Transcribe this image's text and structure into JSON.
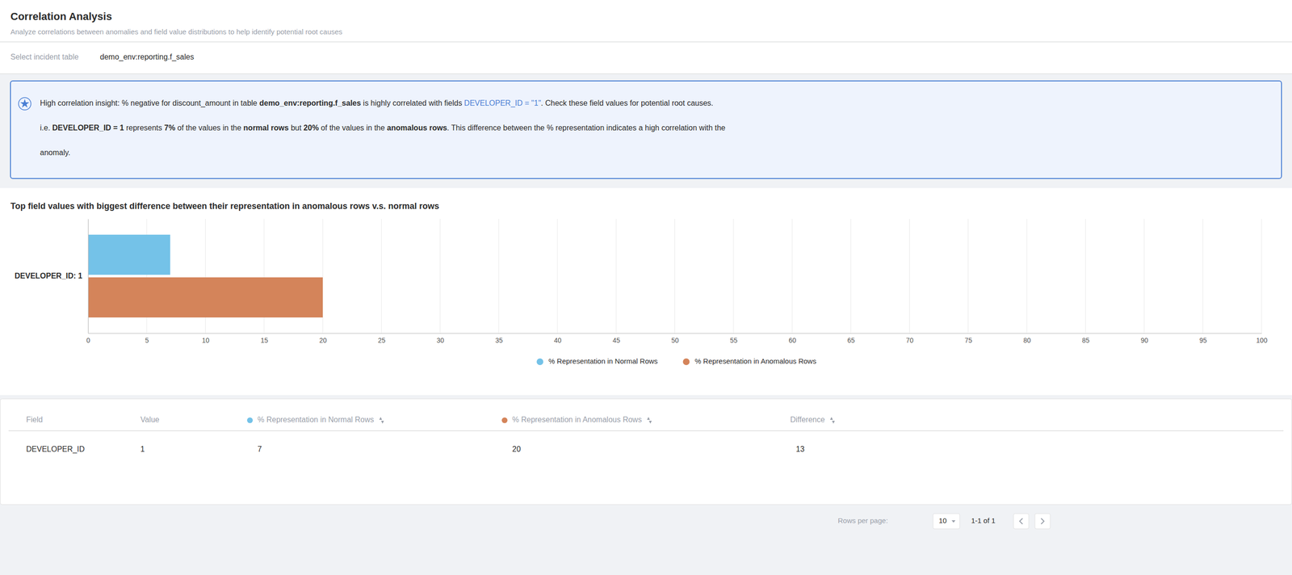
{
  "title": "Correlation Analysis",
  "subtitle": "Analyze correlations between anomalies and field value distributions to help identify potential root causes",
  "select_label": "Select incident table",
  "select_value": "demo_env:reporting.f_sales",
  "insight": [
    [
      {
        "text": "High correlation insight: % negative for discount_amount in table "
      },
      {
        "text": "demo_env:reporting.f_sales",
        "bold": true
      },
      {
        "text": " is highly correlated with fields "
      },
      {
        "text": "DEVELOPER_ID = \"1\"",
        "color": "#4a7fd4"
      },
      {
        "text": ". Check these field values for potential root causes."
      }
    ],
    [
      {
        "text": "i.e. "
      },
      {
        "text": "DEVELOPER_ID = 1",
        "bold": true
      },
      {
        "text": " represents "
      },
      {
        "text": "7%",
        "bold": true
      },
      {
        "text": " of the values in the "
      },
      {
        "text": "normal rows",
        "bold": true
      },
      {
        "text": " but "
      },
      {
        "text": "20%",
        "bold": true
      },
      {
        "text": " of the values in the "
      },
      {
        "text": "anomalous rows",
        "bold": true
      },
      {
        "text": ". This difference between the % representation indicates a high correlation with the"
      }
    ],
    [
      {
        "text": "anomaly."
      }
    ]
  ],
  "chart_data": {
    "type": "bar",
    "orientation": "horizontal",
    "title": "Top field values with biggest difference between their representation in anomalous rows v.s. normal rows",
    "categories": [
      "DEVELOPER_ID: 1"
    ],
    "series": [
      {
        "name": "% Representation in Normal Rows",
        "color": "#74C2E8",
        "values": [
          7
        ]
      },
      {
        "name": "% Representation in Anomalous Rows",
        "color": "#D4845A",
        "values": [
          20
        ]
      }
    ],
    "xlim": [
      0,
      100
    ],
    "xticks": [
      0,
      5,
      10,
      15,
      20,
      25,
      30,
      35,
      40,
      45,
      50,
      55,
      60,
      65,
      70,
      75,
      80,
      85,
      90,
      95,
      100
    ],
    "grid": true,
    "legend": "bottom"
  },
  "table": {
    "headers": [
      "Field",
      "Value",
      "% Representation in Normal Rows",
      "% Representation in Anomalous Rows",
      "Difference"
    ],
    "rows": [
      [
        "DEVELOPER_ID",
        "1",
        "7",
        "20",
        "13"
      ]
    ]
  },
  "rows_per_page_label": "Rows per page:",
  "rows_per_page_value": "10",
  "pagination_label": "1-1 of 1"
}
